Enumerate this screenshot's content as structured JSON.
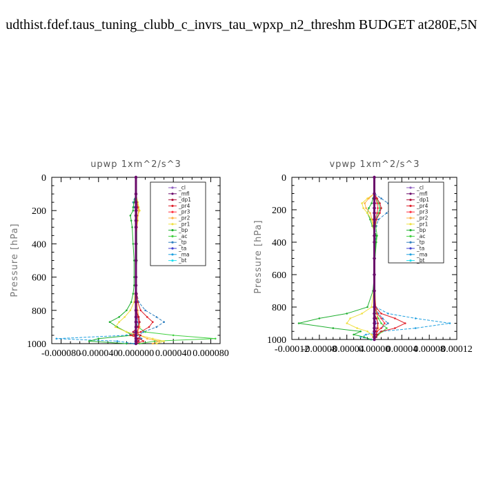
{
  "page_title": "udthist.fdef.taus_tuning_clubb_c_invrs_tau_wpxp_n2_threshm  BUDGET at280E,5N",
  "colors": {
    "cl": "#8f5fbf",
    "mfl": "#6a0a6a",
    "dp1": "#b0103a",
    "pr4": "#e0202a",
    "pr3": "#ff3040",
    "pr2": "#ffb040",
    "pr1": "#f0e040",
    "bp": "#20b030",
    "ac": "#40d040",
    "tp": "#3080c0",
    "ta": "#4040d0",
    "ma": "#20a0e0",
    "bt": "#20e0f0"
  },
  "chart_data": [
    {
      "type": "line",
      "title": "upwp   1xm^2/s^3",
      "ylabel": "Pressure [hPa]",
      "xlim": [
        -9e-05,
        9e-05
      ],
      "ylim": [
        1000,
        0
      ],
      "xticks": [
        -8e-05,
        -4e-05,
        0.0,
        4e-05,
        8e-05
      ],
      "xtick_labels": [
        "-0.000080",
        "-0.000040",
        "0.000000",
        "0.000040",
        "0.000080"
      ],
      "yticks": [
        0,
        200,
        400,
        600,
        800,
        1000
      ],
      "ytick_labels": [
        "0",
        "200",
        "400",
        "600",
        "800",
        "1000"
      ],
      "legend": [
        "_cl",
        "_mfl",
        "_dp1",
        "_pr4",
        "_pr3",
        "_pr2",
        "_pr1",
        "_bp",
        "_ac",
        "_tp",
        "_ta",
        "_ma",
        "_bt"
      ],
      "legend_position": "top-right",
      "y": [
        0,
        100,
        150,
        180,
        200,
        230,
        260,
        300,
        400,
        500,
        600,
        650,
        700,
        750,
        800,
        840,
        870,
        900,
        930,
        950,
        970,
        985,
        1000
      ],
      "series": [
        {
          "name": "_cl",
          "values": [
            0,
            0,
            0,
            0,
            0,
            0,
            0,
            0,
            0,
            0,
            0,
            0,
            0,
            0,
            0,
            0,
            0,
            0,
            0,
            0,
            0,
            0,
            0
          ]
        },
        {
          "name": "_mfl",
          "values": [
            0,
            0,
            0,
            0,
            0,
            0,
            0,
            0,
            0,
            0,
            0,
            0,
            0,
            0,
            0,
            0,
            0,
            0,
            0,
            0,
            0,
            0,
            0
          ]
        },
        {
          "name": "_dp1",
          "values": [
            0,
            0,
            0,
            0,
            0,
            0,
            0,
            0,
            0,
            0,
            0,
            0,
            0,
            0,
            0,
            3e-06,
            4e-06,
            2e-06,
            -3e-06,
            5e-06,
            2e-06,
            3e-06,
            0
          ]
        },
        {
          "name": "_pr4",
          "values": [
            0,
            0,
            1e-06,
            2e-06,
            1e-06,
            1e-06,
            1e-06,
            1e-06,
            0,
            0,
            0,
            0,
            1e-06,
            2e-06,
            5e-06,
            1.2e-05,
            1.8e-05,
            1.4e-05,
            5e-06,
            -6e-06,
            4e-06,
            8e-06,
            0
          ]
        },
        {
          "name": "_pr3",
          "values": [
            0,
            0,
            0,
            1e-06,
            0,
            0,
            0,
            0,
            0,
            0,
            0,
            0,
            0,
            0,
            1e-06,
            2e-06,
            3e-06,
            3e-06,
            1e-06,
            -2e-06,
            1e-06,
            2e-06,
            0
          ]
        },
        {
          "name": "_pr2",
          "values": [
            0,
            0,
            1e-06,
            2e-06,
            3e-06,
            2e-06,
            1e-06,
            1e-06,
            0,
            0,
            0,
            0,
            0,
            1e-06,
            2e-06,
            3e-06,
            4e-06,
            4e-06,
            2e-06,
            4e-06,
            1.2e-05,
            2.5e-05,
            1.8e-05
          ]
        },
        {
          "name": "_pr1",
          "values": [
            0,
            0,
            2e-06,
            3e-06,
            4e-06,
            2e-06,
            2e-06,
            1e-06,
            0,
            0,
            0,
            0,
            -1e-06,
            -2e-06,
            -6e-06,
            -1.2e-05,
            -1.8e-05,
            -2.2e-05,
            -1e-05,
            4e-06,
            1.8e-05,
            3e-05,
            2.2e-05
          ]
        },
        {
          "name": "_bp",
          "values": [
            0,
            0,
            -2e-06,
            -3e-06,
            -3e-06,
            -6e-06,
            -5e-06,
            -4e-06,
            -3e-06,
            -2e-06,
            -2e-06,
            -2e-06,
            -3e-06,
            -5e-06,
            -1e-05,
            -1.8e-05,
            -2.8e-05,
            -2e-05,
            -1e-05,
            -4e-06,
            -4e-05,
            -5e-05,
            -1e-05
          ]
        },
        {
          "name": "_ac",
          "values": [
            0,
            0,
            2e-06,
            3e-06,
            3e-06,
            2e-06,
            2e-06,
            1e-06,
            1e-06,
            1e-06,
            0,
            0,
            0,
            0,
            0,
            0,
            0,
            2e-06,
            1e-05,
            4e-05,
            8.5e-05,
            2e-05,
            4e-06
          ]
        },
        {
          "name": "_tp",
          "values": [
            0,
            0,
            -3e-06,
            -2e-06,
            0,
            0,
            0,
            0,
            0,
            0,
            0,
            0,
            1e-06,
            3e-06,
            1e-05,
            2.2e-05,
            3e-05,
            2.2e-05,
            8e-06,
            2e-06,
            6e-06,
            2e-06,
            0
          ]
        },
        {
          "name": "_ta",
          "values": [
            0,
            0,
            0,
            0,
            0,
            0,
            0,
            0,
            0,
            0,
            0,
            0,
            0,
            0,
            0,
            1e-06,
            1e-06,
            1e-06,
            0,
            -1e-06,
            0,
            0,
            0
          ]
        },
        {
          "name": "_ma",
          "values": [
            0,
            0,
            0,
            0,
            0,
            0,
            0,
            0,
            0,
            0,
            0,
            0,
            0,
            0,
            0,
            2e-06,
            2e-06,
            3e-06,
            2e-06,
            -1e-05,
            -8.5e-05,
            -2e-05,
            -2e-06
          ]
        },
        {
          "name": "_bt",
          "values": [
            0,
            0,
            0,
            0,
            0,
            0,
            0,
            0,
            0,
            0,
            0,
            0,
            0,
            0,
            0,
            0,
            0,
            0,
            0,
            0,
            0,
            0,
            0
          ]
        }
      ]
    },
    {
      "type": "line",
      "title": "vpwp   1xm^2/s^3",
      "ylabel": "Pressure [hPa]",
      "xlim": [
        -0.00012,
        0.00012
      ],
      "ylim": [
        1000,
        0
      ],
      "xticks": [
        -0.00012,
        -8e-05,
        -4e-05,
        0.0,
        4e-05,
        8e-05,
        0.00012
      ],
      "xtick_labels": [
        "-0.00012",
        "-0.00008",
        "-0.00004",
        "0.00000",
        "0.00004",
        "0.00008",
        "0.00012"
      ],
      "yticks": [
        0,
        200,
        400,
        600,
        800,
        1000
      ],
      "ytick_labels": [
        "0",
        "200",
        "400",
        "600",
        "800",
        "1000"
      ],
      "legend": [
        "_cl",
        "_mfl",
        "_dp1",
        "_pr4",
        "_pr3",
        "_pr2",
        "_pr1",
        "_bp",
        "_ac",
        "_tp",
        "_ta",
        "_ma",
        "_bt"
      ],
      "legend_position": "top-right",
      "y": [
        0,
        100,
        130,
        160,
        190,
        220,
        260,
        300,
        360,
        400,
        500,
        600,
        700,
        800,
        840,
        870,
        900,
        930,
        950,
        970,
        985,
        1000
      ],
      "series": [
        {
          "name": "_cl",
          "values": [
            0,
            0,
            0,
            0,
            0,
            0,
            0,
            0,
            0,
            0,
            0,
            0,
            0,
            0,
            0,
            0,
            0,
            0,
            0,
            0,
            0,
            0
          ]
        },
        {
          "name": "_mfl",
          "values": [
            0,
            0,
            0,
            0,
            0,
            0,
            0,
            0,
            0,
            0,
            0,
            0,
            0,
            0,
            0,
            0,
            0,
            0,
            0,
            0,
            0,
            0
          ]
        },
        {
          "name": "_dp1",
          "values": [
            0,
            0,
            0,
            0,
            0,
            0,
            0,
            0,
            0,
            0,
            0,
            0,
            0,
            0,
            0,
            3e-06,
            5e-06,
            4e-06,
            2e-06,
            4e-06,
            3e-06,
            0
          ]
        },
        {
          "name": "_pr4",
          "values": [
            0,
            0,
            4e-06,
            8e-06,
            1e-05,
            8e-06,
            3e-06,
            1e-06,
            0,
            0,
            0,
            0,
            0,
            2e-06,
            1e-05,
            3e-05,
            4.5e-05,
            3e-05,
            1e-05,
            4e-06,
            2e-06,
            0
          ]
        },
        {
          "name": "_pr3",
          "values": [
            0,
            0,
            2e-06,
            4e-06,
            5e-06,
            4e-06,
            1e-06,
            0,
            0,
            0,
            0,
            0,
            0,
            1e-06,
            4e-06,
            1e-05,
            1.5e-05,
            1e-05,
            4e-06,
            2e-06,
            1e-06,
            0
          ]
        },
        {
          "name": "_pr2",
          "values": [
            0,
            0,
            -8e-06,
            -1.4e-05,
            -1.2e-05,
            -6e-06,
            -3e-06,
            -1e-06,
            0,
            0,
            0,
            0,
            1e-06,
            2e-06,
            4e-06,
            4e-06,
            5e-06,
            6e-06,
            4e-06,
            2e-06,
            1e-06,
            0
          ]
        },
        {
          "name": "_pr1",
          "values": [
            0,
            0,
            -1e-05,
            -1.8e-05,
            -1.6e-05,
            -1e-05,
            -4e-06,
            -2e-06,
            0,
            0,
            0,
            0,
            -1e-06,
            -4e-06,
            -1.8e-05,
            -3.5e-05,
            -4e-05,
            -2.5e-05,
            -1e-05,
            -4e-06,
            -2e-06,
            0
          ]
        },
        {
          "name": "_bp",
          "values": [
            0,
            0,
            -2e-06,
            -4e-06,
            -8e-06,
            -1e-05,
            -6e-06,
            -3e-06,
            3e-06,
            2e-06,
            1e-06,
            0,
            -2e-06,
            -1e-05,
            -4e-05,
            -8e-05,
            -0.00011,
            -6e-05,
            -2e-05,
            -3e-05,
            -1.5e-05,
            -5e-06
          ]
        },
        {
          "name": "_ac",
          "values": [
            0,
            0,
            3e-06,
            6e-06,
            8e-06,
            6e-06,
            3e-06,
            2e-06,
            4e-06,
            3e-06,
            1e-06,
            0,
            0,
            1e-06,
            3e-06,
            6e-06,
            1e-05,
            1.8e-05,
            1.2e-05,
            6e-06,
            3e-06,
            0
          ]
        },
        {
          "name": "_tp",
          "values": [
            0,
            0,
            1e-05,
            2e-05,
            2.5e-05,
            1.8e-05,
            6e-06,
            3e-06,
            2e-06,
            2e-06,
            1e-06,
            0,
            0,
            2e-06,
            6e-06,
            1.2e-05,
            2e-05,
            1e-05,
            4e-06,
            2e-06,
            1e-06,
            0
          ]
        },
        {
          "name": "_ta",
          "values": [
            0,
            0,
            0,
            1e-06,
            1e-06,
            1e-06,
            0,
            0,
            0,
            0,
            0,
            0,
            0,
            0,
            1e-06,
            2e-06,
            2e-06,
            1e-06,
            0,
            0,
            0,
            0
          ]
        },
        {
          "name": "_ma",
          "values": [
            0,
            0,
            4e-06,
            8e-06,
            1e-05,
            6e-06,
            2e-06,
            1e-06,
            0,
            0,
            0,
            0,
            0,
            2e-06,
            2e-05,
            6e-05,
            0.00011,
            6e-05,
            1e-05,
            -1.2e-05,
            -2e-05,
            -4e-06
          ]
        },
        {
          "name": "_bt",
          "values": [
            0,
            0,
            0,
            0,
            0,
            0,
            0,
            0,
            0,
            0,
            0,
            0,
            0,
            0,
            0,
            0,
            0,
            0,
            0,
            0,
            0,
            0
          ]
        }
      ]
    }
  ]
}
